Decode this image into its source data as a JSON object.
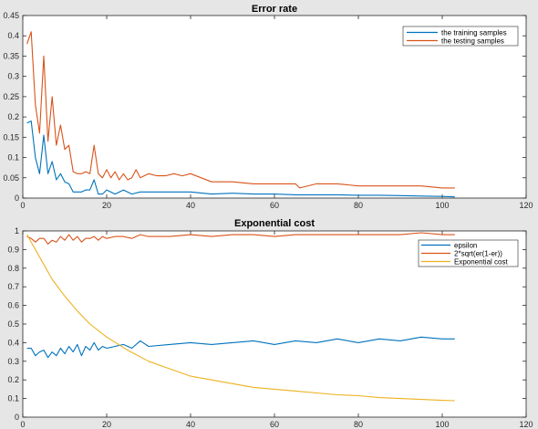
{
  "chart_data": [
    {
      "type": "line",
      "title": "Error rate",
      "xlabel": "",
      "ylabel": "",
      "xlim": [
        0,
        120
      ],
      "ylim": [
        0,
        0.45
      ],
      "xticks": [
        0,
        20,
        40,
        60,
        80,
        100,
        120
      ],
      "yticks": [
        0,
        0.05,
        0.1,
        0.15,
        0.2,
        0.25,
        0.3,
        0.35,
        0.4,
        0.45
      ],
      "xtick_labels": [
        "0",
        "20",
        "40",
        "60",
        "80",
        "100",
        "120"
      ],
      "ytick_labels": [
        "0",
        "0.05",
        "0.1",
        "0.15",
        "0.2",
        "0.25",
        "0.3",
        "0.35",
        "0.4",
        "0.45"
      ],
      "grid": false,
      "legend_position": "top-right",
      "series": [
        {
          "name": "the training samples",
          "color": "#0072bd",
          "x": [
            1,
            2,
            3,
            4,
            5,
            6,
            7,
            8,
            9,
            10,
            11,
            12,
            13,
            14,
            15,
            16,
            17,
            18,
            19,
            20,
            22,
            24,
            26,
            28,
            30,
            35,
            40,
            45,
            50,
            55,
            60,
            65,
            70,
            75,
            80,
            85,
            90,
            95,
            100,
            103
          ],
          "y": [
            0.185,
            0.19,
            0.1,
            0.06,
            0.155,
            0.06,
            0.09,
            0.045,
            0.06,
            0.04,
            0.035,
            0.015,
            0.015,
            0.015,
            0.02,
            0.02,
            0.045,
            0.01,
            0.01,
            0.02,
            0.01,
            0.02,
            0.01,
            0.015,
            0.015,
            0.015,
            0.015,
            0.01,
            0.012,
            0.01,
            0.01,
            0.008,
            0.008,
            0.008,
            0.007,
            0.007,
            0.006,
            0.005,
            0.004,
            0.003
          ]
        },
        {
          "name": "the testing samples",
          "color": "#d95319",
          "x": [
            1,
            2,
            3,
            4,
            5,
            6,
            7,
            8,
            9,
            10,
            11,
            12,
            13,
            14,
            15,
            16,
            17,
            18,
            19,
            20,
            21,
            22,
            23,
            24,
            25,
            26,
            27,
            28,
            30,
            32,
            34,
            36,
            38,
            40,
            45,
            50,
            55,
            60,
            65,
            66,
            70,
            75,
            80,
            85,
            90,
            95,
            100,
            103
          ],
          "y": [
            0.38,
            0.41,
            0.23,
            0.16,
            0.35,
            0.14,
            0.25,
            0.13,
            0.18,
            0.12,
            0.13,
            0.065,
            0.06,
            0.06,
            0.065,
            0.06,
            0.13,
            0.06,
            0.05,
            0.07,
            0.05,
            0.065,
            0.045,
            0.06,
            0.045,
            0.05,
            0.07,
            0.05,
            0.06,
            0.055,
            0.055,
            0.06,
            0.055,
            0.06,
            0.04,
            0.04,
            0.035,
            0.035,
            0.035,
            0.025,
            0.035,
            0.035,
            0.03,
            0.03,
            0.03,
            0.03,
            0.025,
            0.025
          ]
        }
      ]
    },
    {
      "type": "line",
      "title": "Exponential cost",
      "xlabel": "",
      "ylabel": "",
      "xlim": [
        0,
        120
      ],
      "ylim": [
        0,
        1
      ],
      "xticks": [
        0,
        20,
        40,
        60,
        80,
        100,
        120
      ],
      "yticks": [
        0,
        0.1,
        0.2,
        0.3,
        0.4,
        0.5,
        0.6,
        0.7,
        0.8,
        0.9,
        1
      ],
      "xtick_labels": [
        "0",
        "20",
        "40",
        "60",
        "80",
        "100",
        "120"
      ],
      "ytick_labels": [
        "0",
        "0.1",
        "0.2",
        "0.3",
        "0.4",
        "0.5",
        "0.6",
        "0.7",
        "0.8",
        "0.9",
        "1"
      ],
      "grid": false,
      "legend_position": "top-right",
      "series": [
        {
          "name": "epsilon",
          "color": "#0072bd",
          "x": [
            1,
            2,
            3,
            4,
            5,
            6,
            7,
            8,
            9,
            10,
            11,
            12,
            13,
            14,
            15,
            16,
            17,
            18,
            19,
            20,
            22,
            24,
            26,
            28,
            30,
            35,
            40,
            45,
            50,
            55,
            60,
            65,
            70,
            75,
            80,
            85,
            90,
            95,
            100,
            103
          ],
          "y": [
            0.37,
            0.37,
            0.33,
            0.35,
            0.36,
            0.32,
            0.35,
            0.33,
            0.37,
            0.34,
            0.38,
            0.35,
            0.39,
            0.33,
            0.38,
            0.36,
            0.4,
            0.36,
            0.38,
            0.37,
            0.38,
            0.39,
            0.37,
            0.41,
            0.38,
            0.39,
            0.4,
            0.39,
            0.4,
            0.41,
            0.39,
            0.41,
            0.4,
            0.42,
            0.4,
            0.42,
            0.41,
            0.43,
            0.42,
            0.42
          ]
        },
        {
          "name": "2*sqrt(er(1-er))",
          "color": "#d95319",
          "x": [
            1,
            2,
            3,
            4,
            5,
            6,
            7,
            8,
            9,
            10,
            11,
            12,
            13,
            14,
            15,
            16,
            17,
            18,
            19,
            20,
            22,
            24,
            26,
            28,
            30,
            35,
            40,
            45,
            50,
            55,
            60,
            65,
            70,
            75,
            80,
            85,
            90,
            95,
            100,
            103
          ],
          "y": [
            0.97,
            0.96,
            0.94,
            0.96,
            0.96,
            0.93,
            0.95,
            0.94,
            0.97,
            0.95,
            0.98,
            0.95,
            0.97,
            0.94,
            0.96,
            0.96,
            0.97,
            0.95,
            0.97,
            0.96,
            0.97,
            0.97,
            0.96,
            0.98,
            0.97,
            0.97,
            0.98,
            0.97,
            0.98,
            0.98,
            0.97,
            0.98,
            0.98,
            0.98,
            0.98,
            0.98,
            0.98,
            0.99,
            0.98,
            0.98
          ]
        },
        {
          "name": "Exponential cost",
          "color": "#edb120",
          "x": [
            1,
            3,
            5,
            7,
            10,
            13,
            16,
            20,
            25,
            30,
            35,
            40,
            45,
            50,
            55,
            60,
            65,
            70,
            75,
            80,
            85,
            90,
            95,
            100,
            103
          ],
          "y": [
            0.98,
            0.9,
            0.82,
            0.74,
            0.65,
            0.57,
            0.5,
            0.43,
            0.36,
            0.3,
            0.26,
            0.22,
            0.2,
            0.18,
            0.16,
            0.15,
            0.14,
            0.13,
            0.12,
            0.115,
            0.105,
            0.1,
            0.095,
            0.09,
            0.088
          ]
        }
      ]
    }
  ]
}
